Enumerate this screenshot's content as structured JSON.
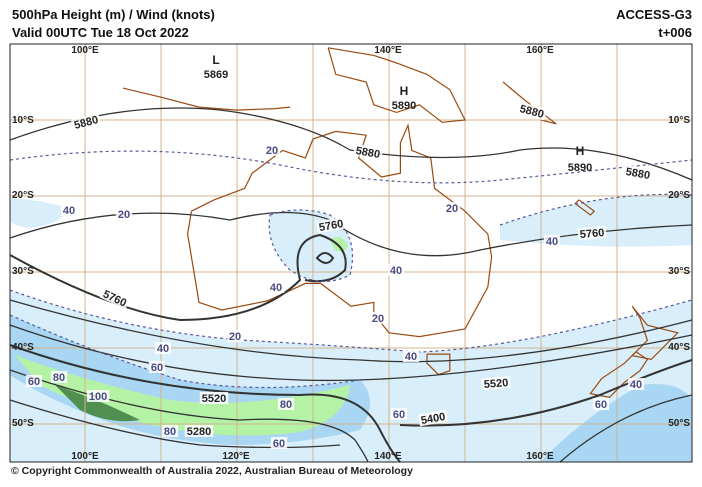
{
  "header": {
    "title": "500hPa Height (m) / Wind (knots)",
    "valid": "Valid 00UTC Tue 18 Oct 2022",
    "model": "ACCESS-G3",
    "lead": "t+006"
  },
  "map": {
    "lon_labels_top": [
      "100°E",
      "140°E",
      "160°E"
    ],
    "lon_labels_bottom": [
      "100°E",
      "120°E",
      "140°E",
      "160°E"
    ],
    "lat_labels": [
      "10°S",
      "20°S",
      "30°S",
      "40°S",
      "50°S"
    ],
    "centers": [
      {
        "symbol": "L",
        "value": 5869
      },
      {
        "symbol": "H",
        "value": 5890
      },
      {
        "symbol": "H",
        "value": 5890
      }
    ],
    "height_labels": [
      5880,
      5880,
      5880,
      5880,
      5760,
      5760,
      5760,
      5520,
      5520,
      5400,
      5280
    ],
    "wind_labels": [
      20,
      20,
      20,
      20,
      20,
      40,
      40,
      40,
      40,
      40,
      40,
      40,
      60,
      60,
      60,
      60,
      60,
      80,
      80,
      80,
      100
    ]
  },
  "footer": "© Copyright Commonwealth of Australia 2022, Australian Bureau of Meteorology"
}
